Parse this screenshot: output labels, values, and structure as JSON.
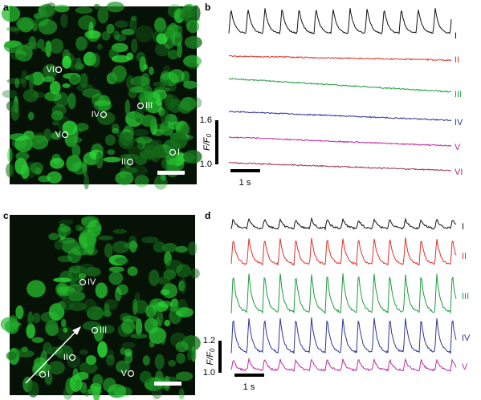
{
  "panels": [
    {
      "label": "a",
      "cells": [
        "VI",
        "IV",
        "III",
        "V",
        "II",
        "I"
      ]
    },
    {
      "label": "b",
      "traces": [
        "I",
        "II",
        "III",
        "IV",
        "V",
        "VI"
      ],
      "scale": {
        "y_top": "1.6",
        "y_bottom": "1.0",
        "y_label": "F/F",
        "y_label_sub": "0",
        "x_label": "1 s"
      }
    },
    {
      "label": "c",
      "cells": [
        "IV",
        "III",
        "II",
        "I",
        "V"
      ]
    },
    {
      "label": "d",
      "traces": [
        "I",
        "II",
        "III",
        "IV",
        "V"
      ],
      "scale": {
        "y_top": "1.2",
        "y_bottom": "1.0",
        "y_label": "F/F",
        "y_label_sub": "0",
        "x_label": "1 s"
      }
    }
  ]
}
